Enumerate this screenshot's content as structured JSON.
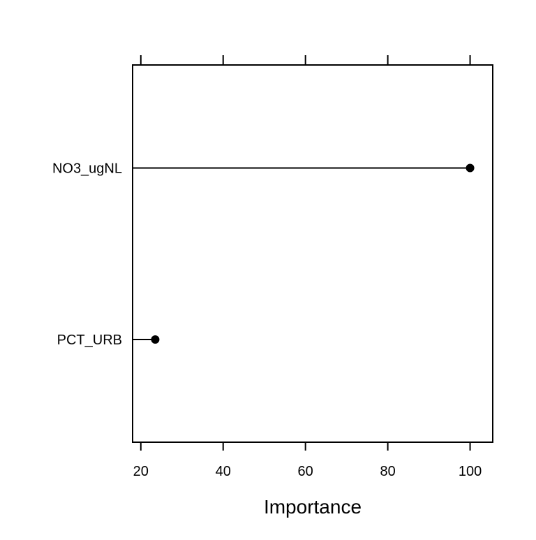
{
  "chart_data": {
    "type": "dot",
    "title": "",
    "xlabel": "Importance",
    "ylabel": "",
    "categories": [
      "NO3_ugNL",
      "PCT_URB"
    ],
    "values": [
      100,
      23.5
    ],
    "xlim": [
      18,
      105.5
    ],
    "xticks": [
      20,
      40,
      60,
      80,
      100
    ],
    "xtick_labels": [
      "20",
      "40",
      "60",
      "80",
      "100"
    ],
    "grid": false,
    "legend": "none",
    "colors": {
      "mark": "#000000",
      "frame": "#000000",
      "background": "#ffffff"
    }
  }
}
